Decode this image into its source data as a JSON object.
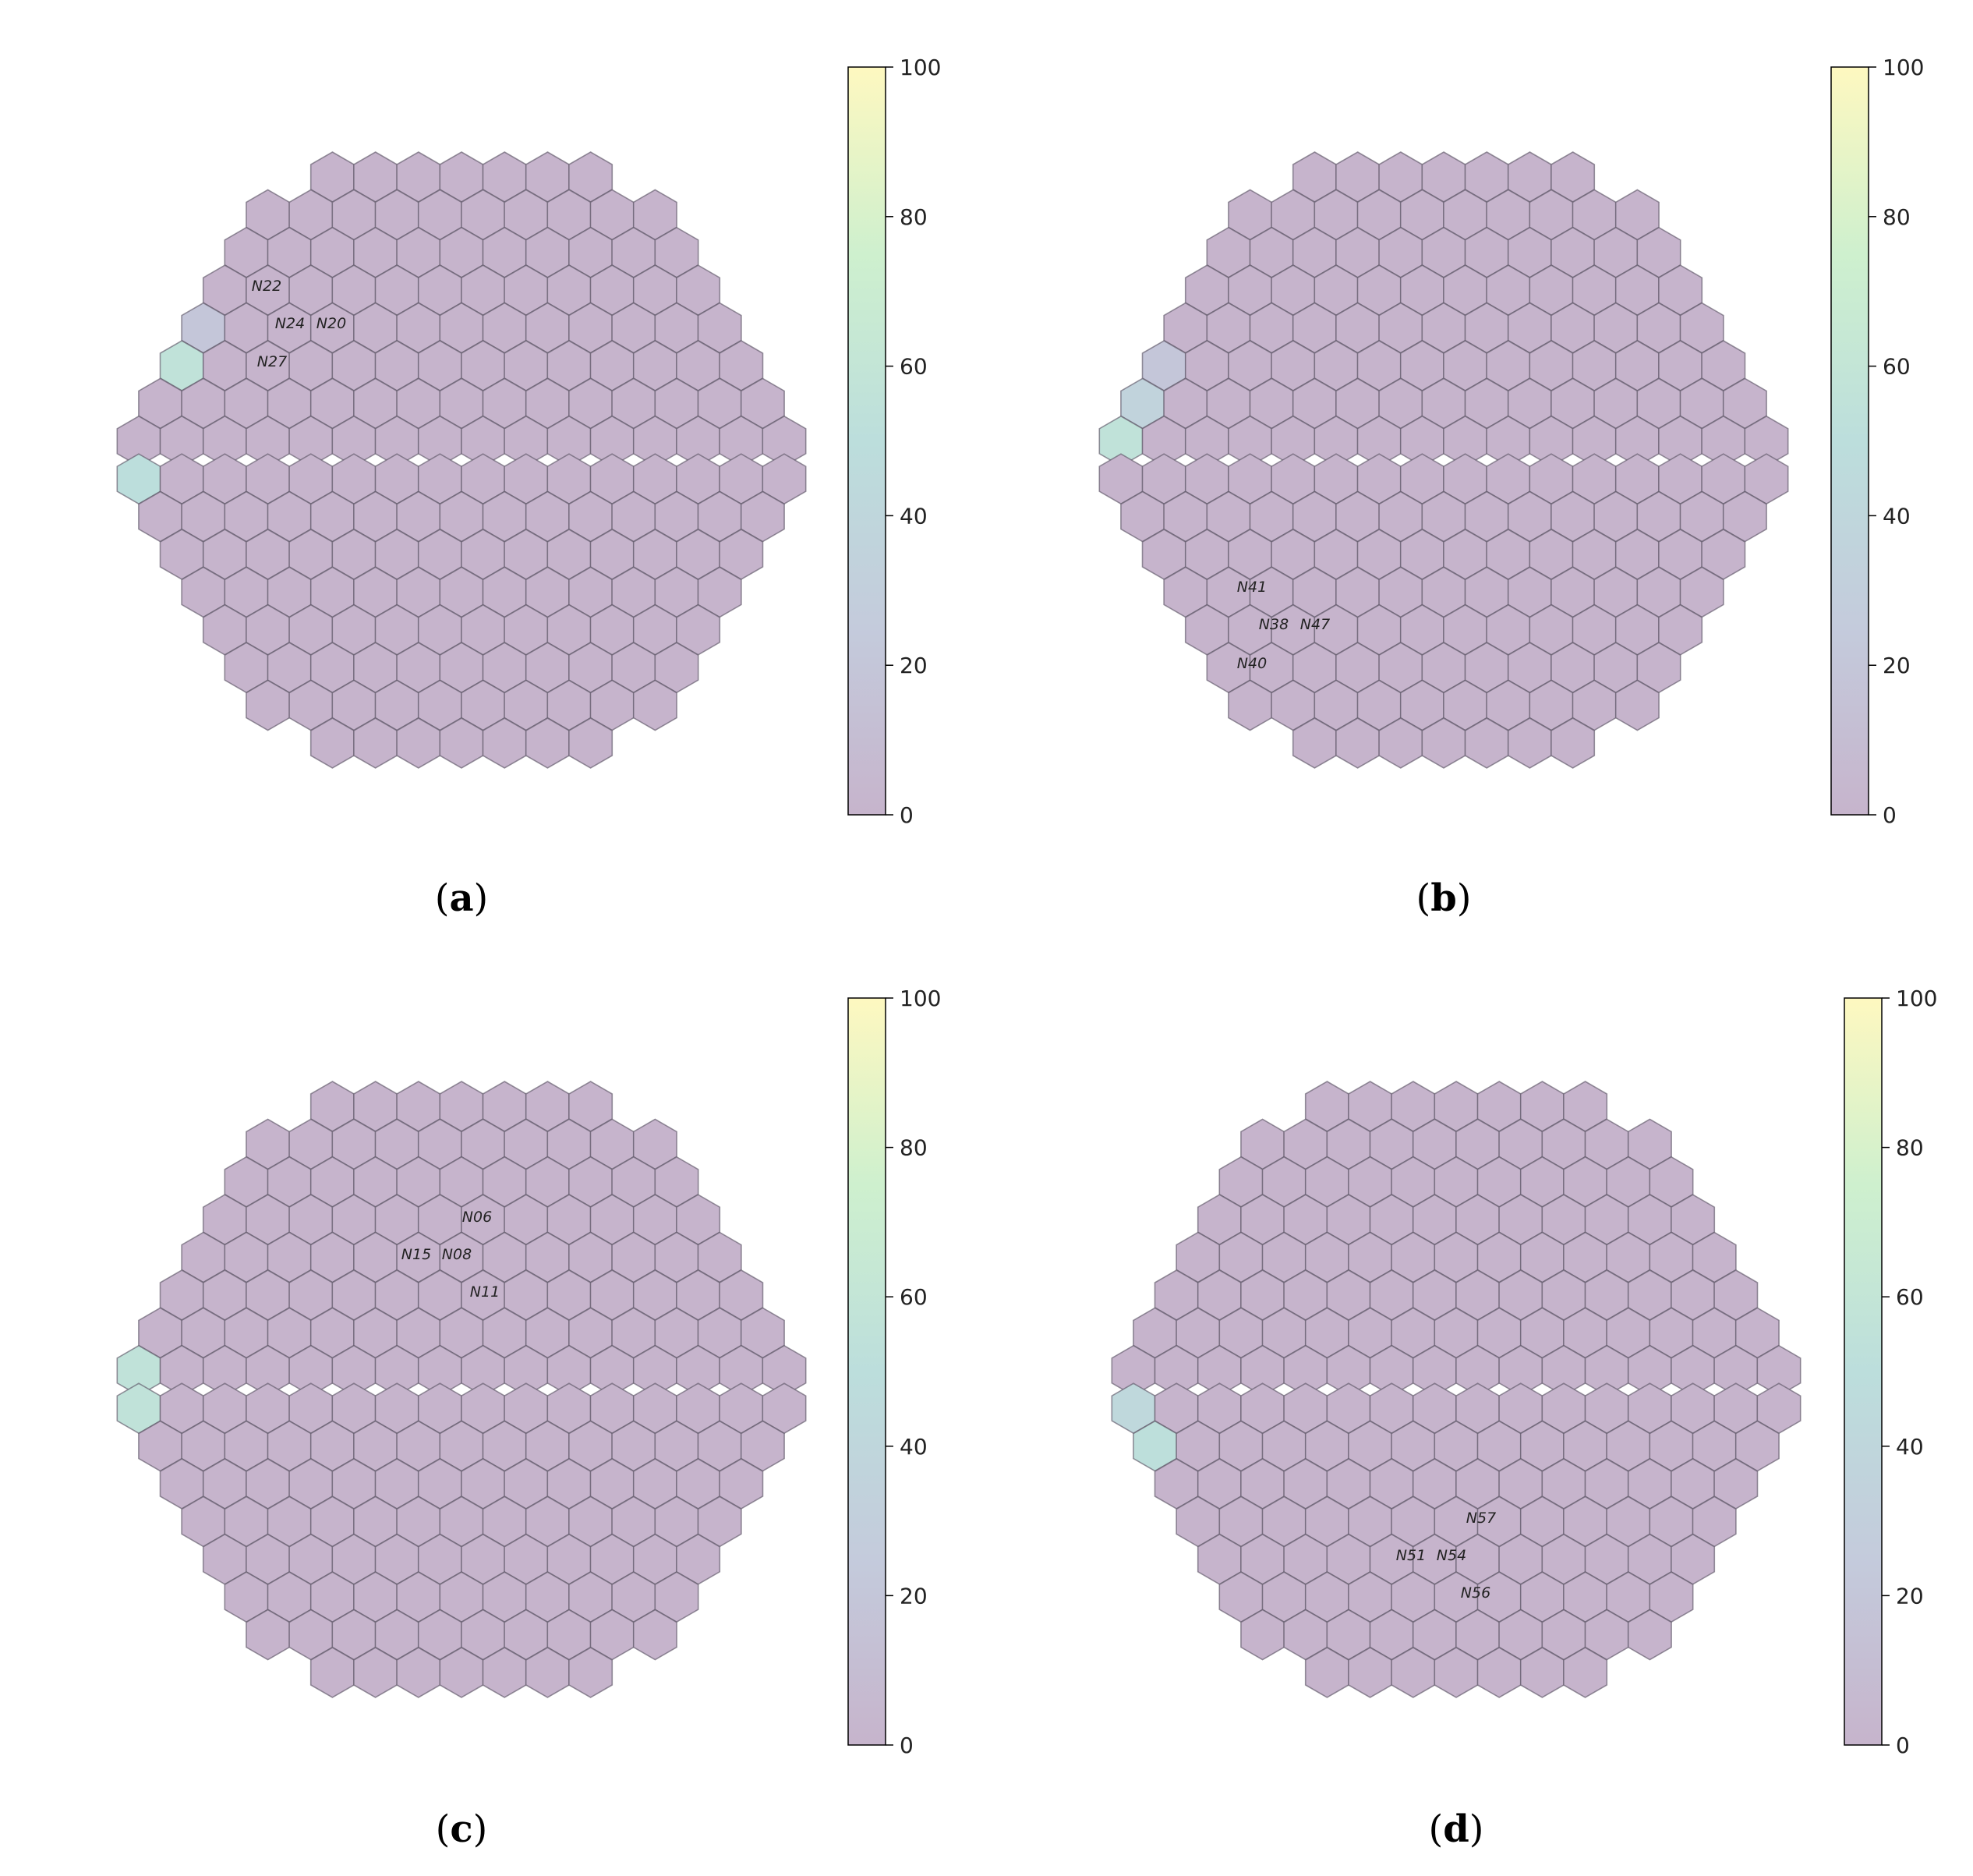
{
  "figure": {
    "colorbar": {
      "min": 0,
      "max": 100,
      "ticks": [
        0,
        20,
        40,
        60,
        80,
        100
      ],
      "colormap": [
        "#440154",
        "#3b528b",
        "#21918c",
        "#5ec962",
        "#fde725"
      ],
      "alpha": 0.3
    },
    "panels": [
      {
        "id": "a",
        "caption_open": "(",
        "caption_letter": "a",
        "caption_close": ")",
        "labels": [
          "N22",
          "N24",
          "N20",
          "N27"
        ],
        "highlighted_values": [
          {
            "cell": "left-row5",
            "value": 55
          },
          {
            "cell": "left-row8",
            "value": 50
          },
          {
            "cell": "left-row4",
            "value": 20
          }
        ]
      },
      {
        "id": "b",
        "caption_open": "(",
        "caption_letter": "b",
        "caption_close": ")",
        "labels": [
          "N41",
          "N38",
          "N47",
          "N40"
        ],
        "highlighted_values": [
          {
            "cell": "left-row7",
            "value": 55
          },
          {
            "cell": "left-row6",
            "value": 35
          },
          {
            "cell": "left-row5",
            "value": 20
          }
        ]
      },
      {
        "id": "c",
        "caption_open": "(",
        "caption_letter": "c",
        "caption_close": ")",
        "labels": [
          "N06",
          "N15",
          "N08",
          "N11"
        ],
        "highlighted_values": [
          {
            "cell": "left-row7",
            "value": 55
          },
          {
            "cell": "left-row8",
            "value": 55
          }
        ]
      },
      {
        "id": "d",
        "caption_open": "(",
        "caption_letter": "d",
        "caption_close": ")",
        "labels": [
          "N57",
          "N51",
          "N54",
          "N56"
        ],
        "highlighted_values": [
          {
            "cell": "left-row8",
            "value": 42
          },
          {
            "cell": "left-row9",
            "value": 52
          }
        ]
      }
    ]
  }
}
